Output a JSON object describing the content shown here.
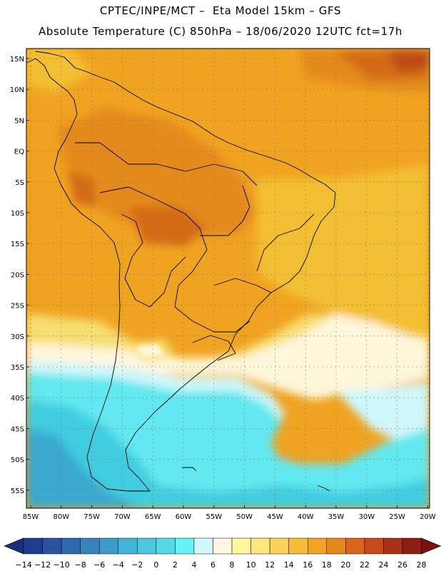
{
  "title_line1": "CPTEC/INPE/MCT –  Eta Model 15km – GFS",
  "title_line2": "Absolute Temperature (C) 850hPa – 18/06/2020 12UTC fct=17h",
  "map": {
    "lat_labels": [
      "15N",
      "10N",
      "5N",
      "EQ",
      "5S",
      "10S",
      "15S",
      "20S",
      "25S",
      "30S",
      "35S",
      "40S",
      "45S",
      "50S",
      "55S"
    ],
    "lon_labels": [
      "85W",
      "80W",
      "75W",
      "70W",
      "65W",
      "60W",
      "55W",
      "50W",
      "45W",
      "40W",
      "35W",
      "30W",
      "25W",
      "20W"
    ],
    "field_colors": {
      "warm": "#f0a320",
      "hot": "#e48a1a",
      "hotter": "#d36b17",
      "hottest": "#bb4a18",
      "mild": "#f3bf33",
      "yellow": "#f6de70",
      "cream": "#fff6dc",
      "pale_cyan": "#cff7fb",
      "cyan": "#62e8f0",
      "blue_cyan": "#40cde0",
      "mid_blue": "#3aa8cf",
      "coast": "#000000"
    }
  },
  "legend": {
    "colors": [
      "#1f3d8f",
      "#27539f",
      "#2f6aae",
      "#3783be",
      "#3d9bcb",
      "#43b3d6",
      "#4bc7df",
      "#55d8e8",
      "#66f2f8",
      "#d2f8fb",
      "#fff7df",
      "#fff6a0",
      "#fde67a",
      "#fad25a",
      "#f5bc38",
      "#f0a422",
      "#e48a1a",
      "#d9661a",
      "#c84a1a",
      "#a93216",
      "#8b1f14"
    ],
    "end_low": "#1a2f7c",
    "end_high": "#7a1010",
    "labels": [
      "-14",
      "-12",
      "-10",
      "-8",
      "-6",
      "-4",
      "-2",
      "0",
      "2",
      "4",
      "6",
      "8",
      "10",
      "12",
      "14",
      "16",
      "18",
      "20",
      "22",
      "24",
      "26",
      "28"
    ]
  }
}
